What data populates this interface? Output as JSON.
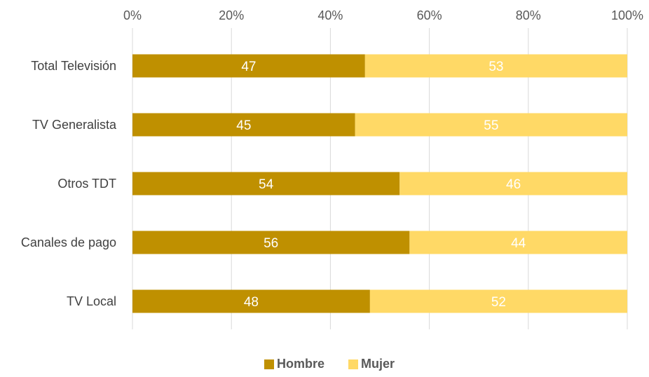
{
  "chart_data": {
    "type": "bar",
    "orientation": "horizontal",
    "stacked": true,
    "title": "",
    "xlabel": "",
    "ylabel": "",
    "xlim": [
      0,
      100
    ],
    "x_tick_labels": [
      "0%",
      "20%",
      "40%",
      "60%",
      "80%",
      "100%"
    ],
    "grid": true,
    "legend_position": "bottom",
    "categories": [
      "Total Televisión",
      "TV Generalista",
      "Otros TDT",
      "Canales de pago",
      "TV Local"
    ],
    "series": [
      {
        "name": "Hombre",
        "color": "#bf9000",
        "values": [
          47,
          45,
          54,
          56,
          48
        ]
      },
      {
        "name": "Mujer",
        "color": "#ffd966",
        "values": [
          53,
          55,
          46,
          44,
          52
        ]
      }
    ],
    "data_label_color": "#ffffff"
  }
}
